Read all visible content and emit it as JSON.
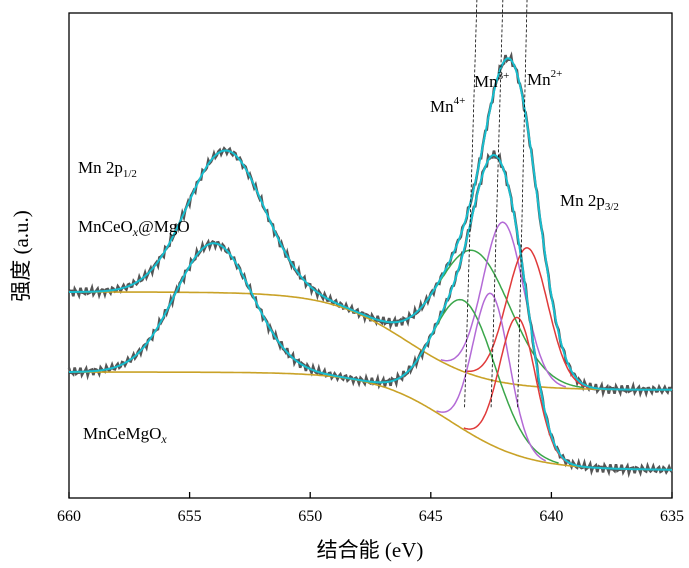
{
  "chart_data": {
    "type": "line",
    "title": "",
    "xlabel": "结合能 (eV)",
    "ylabel": "强度 (a.u.)",
    "xlim": [
      660,
      635
    ],
    "x_reversed": true,
    "yticks_visible": false,
    "grid": false,
    "xticks": [
      660,
      655,
      650,
      645,
      640,
      635
    ],
    "colors": {
      "raw": "#555555",
      "envelope": "#17becf",
      "background": "#c9a227",
      "Mn4+": "#3aa64a",
      "Mn3+": "#b36ad6",
      "Mn2+": "#e03a3a",
      "guide": "#000000"
    },
    "samples": [
      {
        "name": "MnCeOx@MgO",
        "label_parts": [
          {
            "text": "MnCeO",
            "style": "normal"
          },
          {
            "text": "x",
            "style": "italic-sub"
          },
          {
            "text": "@MgO",
            "style": "normal"
          }
        ],
        "baseline": 0.18,
        "background": {
          "low": 0.0,
          "high": 0.22,
          "center": 646.0,
          "width": 1.6
        },
        "peaks": [
          {
            "name": "Mn 2p1/2",
            "center": 653.5,
            "amp": 0.32,
            "sigma": 1.6
          },
          {
            "name": "Mn4+",
            "center": 643.2,
            "amp": 0.28,
            "sigma": 1.5
          },
          {
            "name": "Mn3+",
            "center": 642.0,
            "amp": 0.36,
            "sigma": 0.85
          },
          {
            "name": "Mn2+",
            "center": 641.0,
            "amp": 0.31,
            "sigma": 0.85
          }
        ]
      },
      {
        "name": "MnCeMgOx",
        "label_parts": [
          {
            "text": "MnCeMgO",
            "style": "normal"
          },
          {
            "text": "x",
            "style": "italic-sub"
          }
        ],
        "baseline": 0.0,
        "background": {
          "low": 0.0,
          "high": 0.22,
          "center": 644.2,
          "width": 1.6
        },
        "peaks": [
          {
            "name": "Mn 2p1/2",
            "center": 654.0,
            "amp": 0.29,
            "sigma": 1.6
          },
          {
            "name": "Mn4+",
            "center": 643.6,
            "amp": 0.29,
            "sigma": 1.3
          },
          {
            "name": "Mn3+",
            "center": 642.5,
            "amp": 0.34,
            "sigma": 0.75
          },
          {
            "name": "Mn2+",
            "center": 641.4,
            "amp": 0.31,
            "sigma": 0.75
          }
        ]
      }
    ],
    "annotations": {
      "mn_2p12": {
        "main": "Mn 2p",
        "sub": "1/2"
      },
      "mn_2p32": {
        "main": "Mn 2p",
        "sub": "3/2"
      },
      "mn4": {
        "main": "Mn",
        "sup": "4+"
      },
      "mn3": {
        "main": "Mn",
        "sup": "3+"
      },
      "mn2": {
        "main": "Mn",
        "sup": "2+"
      }
    }
  }
}
